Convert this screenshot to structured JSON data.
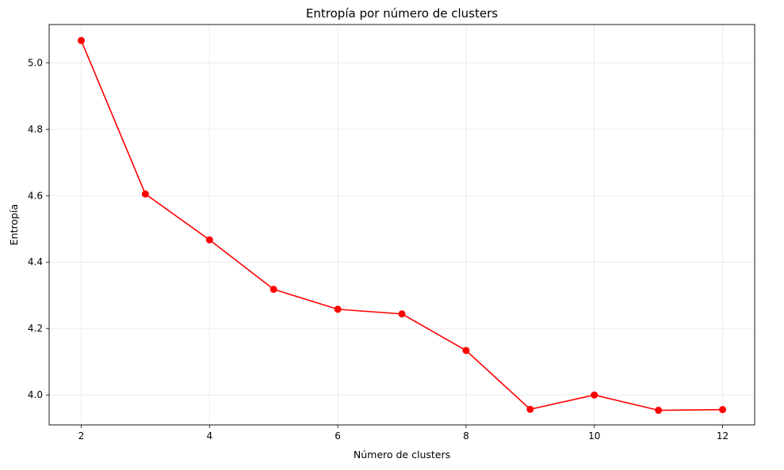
{
  "chart_data": {
    "type": "line",
    "title": "Entropía por número de clusters",
    "xlabel": "Número de clusters",
    "ylabel": "Entropía",
    "xlim": [
      1.5,
      12.5
    ],
    "ylim": [
      3.91,
      5.115
    ],
    "xticks": [
      2,
      4,
      6,
      8,
      10,
      12
    ],
    "yticks": [
      4.0,
      4.2,
      4.4,
      4.6,
      4.8,
      5.0
    ],
    "ytick_labels": [
      "4.0",
      "4.2",
      "4.4",
      "4.6",
      "4.8",
      "5.0"
    ],
    "grid": true,
    "series": [
      {
        "color": "#ff0000",
        "marker": "circle",
        "x": [
          2,
          3,
          4,
          5,
          6,
          7,
          8,
          9,
          10,
          11,
          12
        ],
        "y": [
          5.067,
          4.605,
          4.467,
          4.318,
          4.258,
          4.244,
          4.134,
          3.957,
          4.0,
          3.954,
          3.956
        ]
      }
    ]
  }
}
